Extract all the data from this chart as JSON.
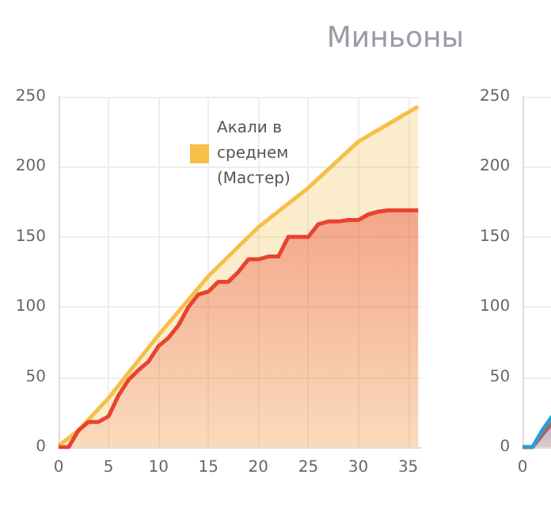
{
  "chart_data": [
    {
      "type": "area",
      "title": "Миньоны",
      "xlim": [
        0,
        36.3
      ],
      "xticks": [
        0,
        5,
        10,
        15,
        20,
        25,
        30,
        35
      ],
      "ylim": [
        0,
        250
      ],
      "yticks": [
        0,
        50,
        100,
        150,
        200,
        250
      ],
      "grid": true,
      "legend": "top left",
      "marker": "none",
      "series": [
        {
          "color": "#e8432f",
          "x": [
            0,
            1,
            2,
            3,
            4,
            5,
            6,
            7,
            8,
            9,
            10,
            11,
            12,
            13,
            14,
            15,
            16,
            17,
            18,
            19,
            20,
            21,
            22,
            23,
            24,
            25,
            26,
            27,
            28,
            29,
            30,
            31,
            32,
            33,
            34,
            35,
            36
          ],
          "values": [
            0,
            0,
            12,
            18,
            18,
            22,
            37,
            48,
            55,
            61,
            72,
            78,
            87,
            100,
            109,
            111,
            118,
            118,
            125,
            134,
            134,
            136,
            136,
            150,
            150,
            150,
            159,
            161,
            161,
            162,
            162,
            166,
            168,
            169,
            169,
            169,
            169
          ]
        },
        {
          "name": "Акали в среднем (Мастер)",
          "color": "#f5c04a",
          "x": [
            0,
            2,
            5,
            10,
            15,
            20,
            25,
            30,
            36
          ],
          "values": [
            1,
            12,
            35,
            80,
            122,
            157,
            185,
            218,
            243
          ]
        }
      ]
    },
    {
      "type": "area",
      "categories": [
        "0",
        null,
        null,
        null,
        null,
        null,
        null,
        null,
        null,
        null,
        null,
        null,
        null,
        null,
        null
      ],
      "ylim": [
        0,
        250
      ],
      "yticks": [
        0,
        50,
        100,
        150,
        200,
        250
      ],
      "grid": "y",
      "marker": "none",
      "series": [
        {
          "color": "#2a9fd6",
          "values": [
            0,
            0,
            12,
            22,
            null,
            null,
            null,
            null,
            null,
            null,
            null,
            null,
            null,
            null,
            null
          ]
        },
        {
          "color": "#e8432f",
          "values": [
            0,
            0,
            9,
            17,
            null,
            null,
            null,
            null,
            null,
            null,
            null,
            null,
            null,
            null,
            null
          ]
        }
      ]
    }
  ]
}
